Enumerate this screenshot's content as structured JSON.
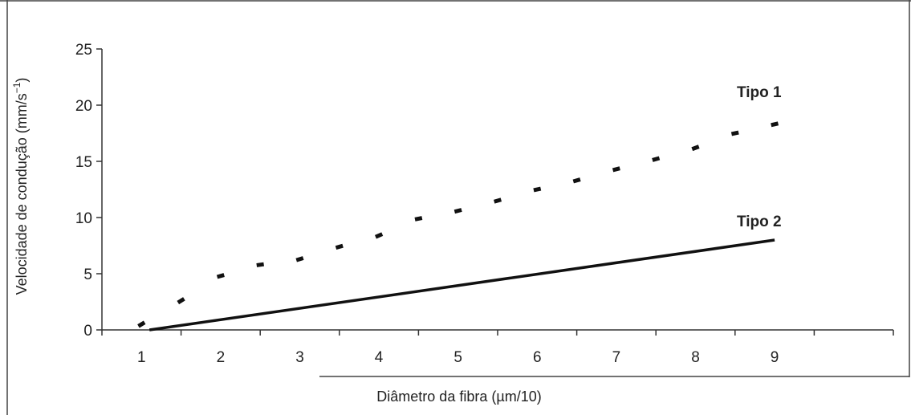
{
  "chart_data": {
    "type": "line",
    "xlabel": "Diâmetro da fibra (µm/10)",
    "ylabel_main": "Velocidade de condução (mm/s",
    "ylabel_sup": "−1",
    "ylabel_close": ")",
    "xlim": [
      0.5,
      10.5
    ],
    "ylim": [
      0,
      25
    ],
    "x_ticks": [
      "1",
      "2",
      "3",
      "4",
      "5",
      "6",
      "7",
      "8",
      "9"
    ],
    "y_ticks": [
      "0",
      "5",
      "10",
      "15",
      "20",
      "25"
    ],
    "grid": false,
    "series": [
      {
        "name": "Tipo 1",
        "style": "dotted",
        "color": "#111111",
        "x": [
          1.0,
          1.5,
          2.0,
          2.5,
          3.0,
          3.5,
          4.0,
          4.5,
          5.0,
          5.5,
          6.0,
          6.5,
          7.0,
          7.5,
          8.0,
          8.5,
          9.0
        ],
        "y": [
          0.5,
          2.6,
          4.8,
          5.8,
          6.3,
          7.4,
          8.4,
          9.9,
          10.6,
          11.5,
          12.5,
          13.3,
          14.3,
          15.2,
          16.2,
          17.5,
          18.3
        ]
      },
      {
        "name": "Tipo 2",
        "style": "solid",
        "color": "#111111",
        "x": [
          1.1,
          9.0
        ],
        "y": [
          0.0,
          8.0
        ]
      }
    ]
  }
}
